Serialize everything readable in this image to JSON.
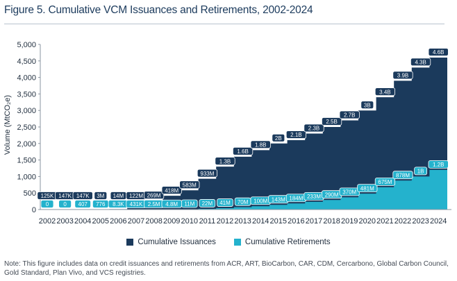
{
  "title": "Figure 5. Cumulative VCM Issuances and Retirements, 2002-2024",
  "legend": {
    "issuances": "Cumulative Issuances",
    "retirements": "Cumulative Retirements"
  },
  "note": "Note: This figure includes data on credit issuances and retirements from ACR, ART, BioCarbon, CAR, CDM, Cercarbono, Global Carbon Council, Gold Standard, Plan Vivo, and VCS registries.",
  "colors": {
    "issuances": "#1b3a5c",
    "retirements": "#24b2cd",
    "title": "#1b3a5c"
  },
  "chart_data": {
    "type": "area",
    "ylabel": "Volume (MtCO₂e)",
    "ylim": [
      0,
      5000
    ],
    "yticks": [
      "0",
      "500",
      "1,000",
      "1,500",
      "2,000",
      "2,500",
      "3,000",
      "3,500",
      "4,000",
      "4,500",
      "5,000"
    ],
    "ytick_values": [
      0,
      500,
      1000,
      1500,
      2000,
      2500,
      3000,
      3500,
      4000,
      4500,
      5000
    ],
    "categories": [
      "2002",
      "2003",
      "2004",
      "2005",
      "2006",
      "2007",
      "2008",
      "2009",
      "2010",
      "2011",
      "2012",
      "2013",
      "2014",
      "2015",
      "2016",
      "2017",
      "2018",
      "2019",
      "2020",
      "2021",
      "2022",
      "2023",
      "2024"
    ],
    "series": [
      {
        "name": "Cumulative Issuances",
        "values": [
          0.125,
          0.147,
          0.147,
          3,
          14,
          122,
          269,
          418,
          583,
          933,
          1300,
          1600,
          1800,
          2000,
          2100,
          2300,
          2500,
          2700,
          3000,
          3400,
          3900,
          4300,
          4600
        ],
        "labels": [
          "125K",
          "147K",
          "147K",
          "3M",
          "14M",
          "122M",
          "269M",
          "418M",
          "583M",
          "933M",
          "1.3B",
          "1.6B",
          "1.8B",
          "2B",
          "2.1B",
          "2.3B",
          "2.5B",
          "2.7B",
          "3B",
          "3.4B",
          "3.9B",
          "4.3B",
          "4.6B"
        ]
      },
      {
        "name": "Cumulative Retirements",
        "values": [
          0,
          0,
          0.000407,
          0.000776,
          0.0083,
          0.431,
          2.5,
          4.8,
          11,
          22,
          41,
          70,
          100,
          143,
          184,
          233,
          290,
          370,
          481,
          675,
          878,
          1000,
          1200
        ],
        "labels": [
          "0",
          "0",
          "407",
          "776",
          "8.3K",
          "431K",
          "2.5M",
          "4.8M",
          "11M",
          "22M",
          "41M",
          "70M",
          "100M",
          "143M",
          "184M",
          "233M",
          "290M",
          "370M",
          "481M",
          "675M",
          "878M",
          "1B",
          "1.2B"
        ]
      }
    ],
    "grid": false,
    "legend_position": "bottom"
  }
}
